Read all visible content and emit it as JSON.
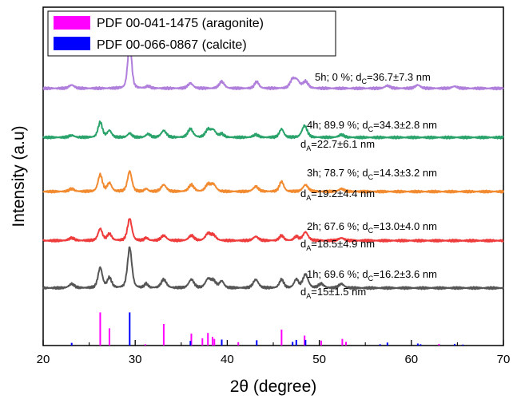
{
  "chart_data": {
    "type": "line",
    "xlabel": "2θ (degree)",
    "ylabel": "Intensity (a.u)",
    "xlim": [
      20,
      70
    ],
    "x_ticks": [
      "20",
      "30",
      "40",
      "50",
      "60",
      "70"
    ],
    "legend": {
      "placement": "top-left",
      "entries": [
        {
          "label": "PDF 00-041-1475 (aragonite)",
          "color": "#ff00ff"
        },
        {
          "label": "PDF 00-066-0867 (calcite)",
          "color": "#0000ff"
        }
      ]
    },
    "series": [
      {
        "color": "#555555",
        "baseline": 0.17,
        "annotation": [
          "1h; 69.6 %; d",
          "C",
          "=16.2±3.6 nm",
          "d",
          "A",
          "=15±1.5 nm"
        ],
        "peaks": [
          [
            23.1,
            0.012,
            0.3
          ],
          [
            26.2,
            0.06,
            0.25
          ],
          [
            27.2,
            0.03,
            0.25
          ],
          [
            29.4,
            0.12,
            0.25
          ],
          [
            31.2,
            0.012,
            0.2
          ],
          [
            33.1,
            0.025,
            0.3
          ],
          [
            36.1,
            0.025,
            0.3
          ],
          [
            37.9,
            0.025,
            0.3
          ],
          [
            38.5,
            0.02,
            0.3
          ],
          [
            39.4,
            0.02,
            0.25
          ],
          [
            43.1,
            0.025,
            0.3
          ],
          [
            45.9,
            0.025,
            0.25
          ],
          [
            47.5,
            0.025,
            0.25
          ],
          [
            48.5,
            0.04,
            0.3
          ],
          [
            50.2,
            0.012,
            0.3
          ],
          [
            52.4,
            0.012,
            0.3
          ]
        ]
      },
      {
        "color": "#ee3c3c",
        "baseline": 0.31,
        "annotation": [
          "2h; 67.6 %; d",
          "C",
          "=13.0±4.0 nm",
          "d",
          "A",
          "=18.5±4.9 nm"
        ],
        "peaks": [
          [
            23.1,
            0.008,
            0.3
          ],
          [
            26.2,
            0.035,
            0.25
          ],
          [
            27.2,
            0.02,
            0.25
          ],
          [
            29.4,
            0.065,
            0.25
          ],
          [
            31.2,
            0.008,
            0.2
          ],
          [
            33.1,
            0.015,
            0.3
          ],
          [
            36.1,
            0.015,
            0.3
          ],
          [
            37.9,
            0.02,
            0.3
          ],
          [
            38.5,
            0.015,
            0.3
          ],
          [
            43.1,
            0.012,
            0.3
          ],
          [
            45.9,
            0.015,
            0.25
          ],
          [
            47.5,
            0.012,
            0.25
          ],
          [
            48.5,
            0.025,
            0.3
          ],
          [
            52.4,
            0.008,
            0.3
          ]
        ]
      },
      {
        "color": "#f28a30",
        "baseline": 0.455,
        "annotation": [
          "3h; 78.7 %; d",
          "C",
          "=14.3±3.2 nm",
          "d",
          "A",
          "=19.2±4.4 nm"
        ],
        "peaks": [
          [
            23.1,
            0.008,
            0.3
          ],
          [
            26.2,
            0.05,
            0.25
          ],
          [
            27.2,
            0.025,
            0.25
          ],
          [
            29.4,
            0.06,
            0.25
          ],
          [
            31.2,
            0.008,
            0.2
          ],
          [
            33.1,
            0.02,
            0.3
          ],
          [
            36.1,
            0.02,
            0.3
          ],
          [
            37.9,
            0.02,
            0.3
          ],
          [
            38.5,
            0.02,
            0.3
          ],
          [
            43.1,
            0.015,
            0.3
          ],
          [
            45.9,
            0.03,
            0.25
          ],
          [
            48.5,
            0.02,
            0.3
          ],
          [
            52.4,
            0.008,
            0.3
          ]
        ]
      },
      {
        "color": "#2aa36b",
        "baseline": 0.615,
        "annotation": [
          "4h; 89.9 %; d",
          "C",
          "=34.3±2.8 nm",
          "d",
          "A",
          "=22.7±6.1 nm"
        ],
        "peaks": [
          [
            23.1,
            0.006,
            0.3
          ],
          [
            26.2,
            0.045,
            0.25
          ],
          [
            27.2,
            0.02,
            0.25
          ],
          [
            29.4,
            0.012,
            0.25
          ],
          [
            31.4,
            0.01,
            0.25
          ],
          [
            33.1,
            0.02,
            0.3
          ],
          [
            36.0,
            0.025,
            0.3
          ],
          [
            37.9,
            0.022,
            0.3
          ],
          [
            38.5,
            0.02,
            0.3
          ],
          [
            39.4,
            0.01,
            0.25
          ],
          [
            43.1,
            0.008,
            0.3
          ],
          [
            45.9,
            0.025,
            0.25
          ],
          [
            48.4,
            0.035,
            0.3
          ],
          [
            52.4,
            0.008,
            0.3
          ]
        ]
      },
      {
        "color": "#b07fdc",
        "baseline": 0.76,
        "annotation": [
          "5h; 0 %; d",
          "C",
          "=36.7±7.3 nm"
        ],
        "peaks": [
          [
            23.1,
            0.01,
            0.3
          ],
          [
            29.4,
            0.14,
            0.22
          ],
          [
            31.4,
            0.006,
            0.25
          ],
          [
            36.0,
            0.015,
            0.3
          ],
          [
            39.4,
            0.02,
            0.3
          ],
          [
            43.2,
            0.02,
            0.25
          ],
          [
            47.1,
            0.025,
            0.3
          ],
          [
            47.6,
            0.02,
            0.3
          ],
          [
            48.5,
            0.02,
            0.3
          ],
          [
            57.4,
            0.008,
            0.3
          ],
          [
            60.7,
            0.01,
            0.3
          ],
          [
            64.7,
            0.006,
            0.3
          ]
        ]
      }
    ],
    "reference_peaks": {
      "aragonite": {
        "color": "#ff00ff",
        "positions": [
          26.2,
          27.2,
          31.1,
          33.1,
          36.1,
          37.3,
          37.9,
          38.4,
          38.6,
          41.2,
          45.9,
          48.4,
          50.2,
          52.5,
          52.9,
          63.0
        ],
        "intensities": [
          100,
          52,
          4,
          65,
          36,
          22,
          38,
          26,
          20,
          10,
          48,
          30,
          15,
          20,
          11,
          5
        ]
      },
      "calcite": {
        "color": "#0000ff",
        "positions": [
          23.1,
          29.4,
          36.0,
          39.4,
          43.2,
          47.1,
          47.5,
          48.5,
          56.6,
          57.4,
          60.7,
          61.0,
          64.7,
          65.6
        ],
        "intensities": [
          8,
          100,
          14,
          18,
          16,
          11,
          17,
          17,
          4,
          9,
          6,
          4,
          5,
          3
        ]
      }
    }
  }
}
